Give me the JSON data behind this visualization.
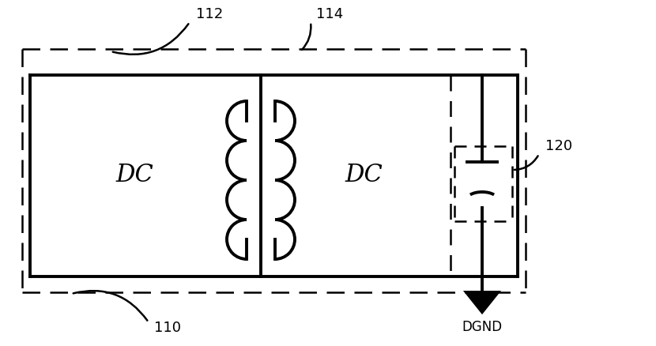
{
  "bg_color": "#ffffff",
  "line_color": "#000000",
  "fig_width": 8.3,
  "fig_height": 4.38,
  "dpi": 100,
  "label_112": "112",
  "label_114": "114",
  "label_110": "110",
  "label_120": "120",
  "label_dc1": "DC",
  "label_dc2": "DC",
  "label_dgnd": "DGND",
  "font_size_labels": 13,
  "font_size_dc": 22,
  "lw_thick": 2.8,
  "lw_thin": 1.8,
  "lw_cap": 2.8
}
